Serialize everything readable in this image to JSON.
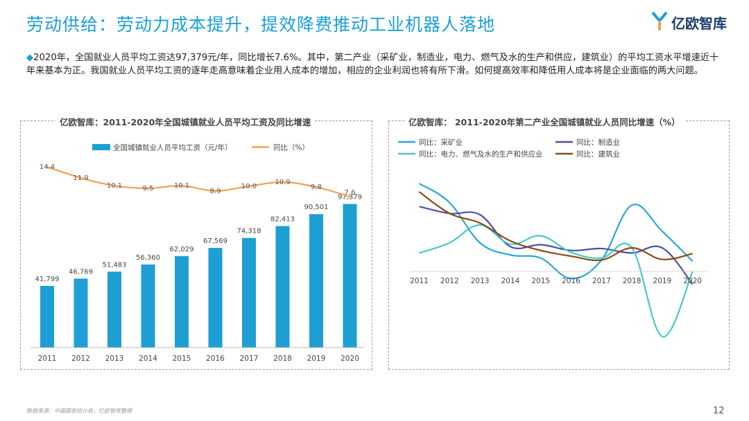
{
  "page": {
    "title": "劳动供给：劳动力成本提升，提效降费推动工业机器人落地",
    "logo_text": "亿欧智库",
    "intro_diamond": "◆",
    "intro": "2020年，全国就业人员平均工资达97,379元/年，同比增长7.6%。其中，第二产业（采矿业，制造业，电力、燃气及水的生产和供应，建筑业）的平均工资水平增速近十年来基本为正。我国就业人员平均工资的逐年走高意味着企业用人成本的增加，相应的企业利润也将有所下滑。如何提高效率和降低用人成本将是企业面临的两大问题。",
    "source": "数据来源：中国国家统计局，亿欧智库整理",
    "page_number": "12"
  },
  "colors": {
    "title": "#1a9fd9",
    "bar": "#1e9fd4",
    "growth_line": "#f0a050",
    "mining": "#2aa5d8",
    "manufacturing": "#4b4fa3",
    "utilities": "#45c9c9",
    "construction": "#8b4a14"
  },
  "chart_data": [
    {
      "type": "bar",
      "title": "亿欧智库：2011-2020年全国城镇就业人员平均工资及同比增速",
      "categories": [
        "2011",
        "2012",
        "2013",
        "2014",
        "2015",
        "2016",
        "2017",
        "2018",
        "2019",
        "2020"
      ],
      "series": [
        {
          "name": "全国城镇就业人员平均工资（元/年）",
          "kind": "bar",
          "values": [
            41799,
            46769,
            51483,
            56360,
            62029,
            67569,
            74318,
            82413,
            90501,
            97379
          ],
          "labels": [
            "41,799",
            "46,769",
            "51,483",
            "56,360",
            "62,029",
            "67,569",
            "74,318",
            "82,413",
            "90,501",
            "97,379"
          ]
        },
        {
          "name": "同比（%）",
          "kind": "line",
          "values": [
            14.4,
            11.9,
            10.1,
            9.5,
            10.1,
            8.9,
            10.0,
            10.9,
            9.8,
            7.6
          ],
          "labels": [
            "14.4",
            "11.9",
            "10.1",
            "9.5",
            "10.1",
            "8.9",
            "10.0",
            "10.9",
            "9.8",
            "7.6"
          ]
        }
      ],
      "legend": "top",
      "grid": false
    },
    {
      "type": "line",
      "title": "亿欧智库：  2011-2020年第二产业全国城镇就业人员同比增速（%）",
      "x": [
        "2011",
        "2012",
        "2013",
        "2014",
        "2015",
        "2016",
        "2017",
        "2018",
        "2019",
        "2020"
      ],
      "series": [
        {
          "name": "同比：采矿业",
          "values": [
            16.5,
            13.5,
            7.2,
            5.3,
            4.8,
            1.6,
            4.5,
            13.1,
            9.0,
            4.3
          ]
        },
        {
          "name": "同比：制造业",
          "values": [
            12.9,
            11.8,
            11.6,
            6.6,
            6.9,
            6.0,
            6.3,
            5.6,
            6.4,
            0.7
          ]
        },
        {
          "name": "同比：电力、燃气及水的生产和供应业",
          "values": [
            5.6,
            7.2,
            10.0,
            7.0,
            8.3,
            5.7,
            4.8,
            6.4,
            -7.5,
            2.7
          ]
        },
        {
          "name": "同比：建筑业",
          "values": [
            15.2,
            11.8,
            10.3,
            7.5,
            6.0,
            5.1,
            4.5,
            6.4,
            4.6,
            5.5
          ]
        }
      ],
      "legend": "top",
      "grid": false
    }
  ]
}
